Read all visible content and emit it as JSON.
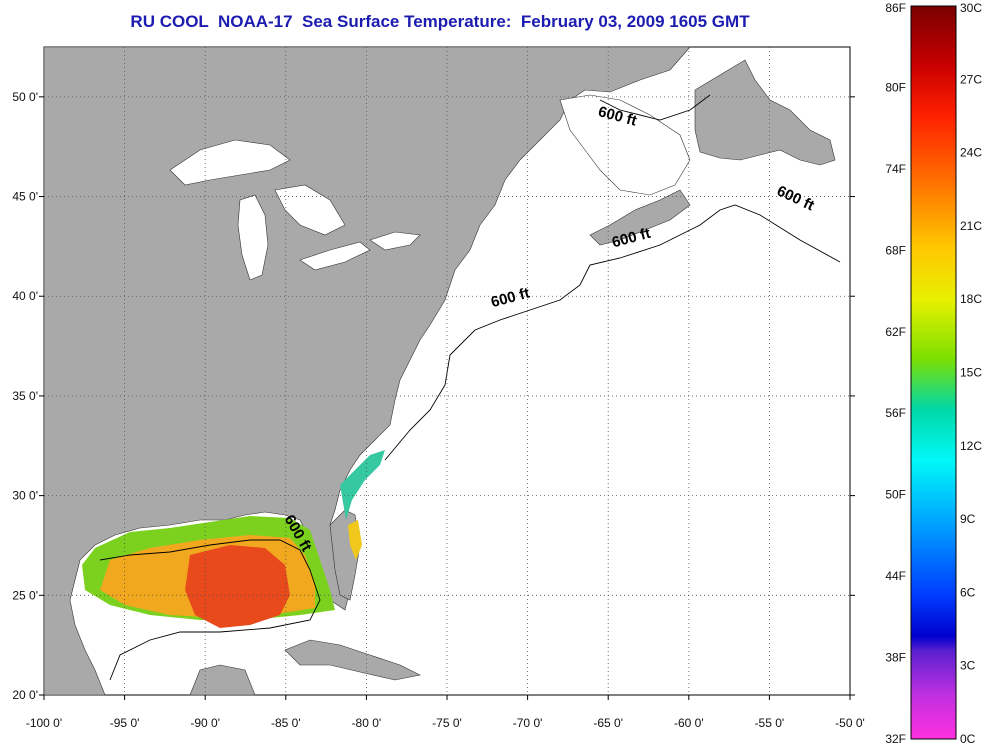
{
  "title": "RU COOL  NOAA-17  Sea Surface Temperature:  February 03, 2009 1605 GMT",
  "map": {
    "lon_range": [
      -100,
      -50
    ],
    "lat_range": [
      20,
      52.5
    ],
    "lon_ticks": [
      "-100 0'",
      "-95 0'",
      "-90 0'",
      "-85 0'",
      "-80 0'",
      "-75 0'",
      "-70 0'",
      "-65 0'",
      "-60 0'",
      "-55 0'",
      "-50 0'"
    ],
    "lat_ticks": [
      "20 0'",
      "25 0'",
      "30 0'",
      "35 0'",
      "40 0'",
      "45 0'",
      "50 0'"
    ],
    "grid": true,
    "land_color": "#a9a9a9",
    "contour_labels": [
      {
        "text": "600 ft",
        "lon": -64.5,
        "lat": 48.8
      },
      {
        "text": "600 ft",
        "lon": -53.5,
        "lat": 44.7
      },
      {
        "text": "600 ft",
        "lon": -63.5,
        "lat": 42.7
      },
      {
        "text": "600 ft",
        "lon": -71.0,
        "lat": 39.7
      },
      {
        "text": "600 ft",
        "lon": -84.5,
        "lat": 28.0
      }
    ]
  },
  "colorbar": {
    "fahrenheit_labels": [
      "86F",
      "80F",
      "74F",
      "68F",
      "62F",
      "56F",
      "50F",
      "44F",
      "38F",
      "32F"
    ],
    "celsius_labels": [
      "30C",
      "27C",
      "24C",
      "21C",
      "18C",
      "15C",
      "12C",
      "9C",
      "6C",
      "3C",
      "0C"
    ]
  }
}
